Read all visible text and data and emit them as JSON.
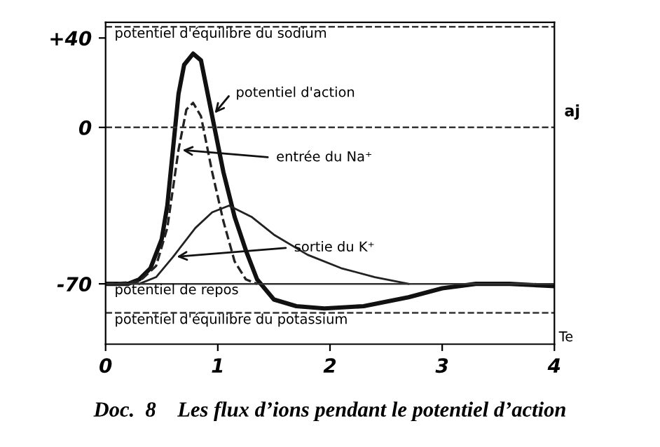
{
  "chart_data": {
    "type": "line",
    "title": "Doc.  8    Les flux d’ions pendant le potentiel d’action",
    "xlabel": "Te",
    "annotations": [
      "aj"
    ],
    "series": [
      {
        "name": "potentiel d'action",
        "color": "#111111",
        "line_style": "solid",
        "x": [
          0,
          0.2,
          0.3,
          0.4,
          0.5,
          0.55,
          0.6,
          0.65,
          0.7,
          0.78,
          0.85,
          0.95,
          1.05,
          1.15,
          1.25,
          1.35,
          1.5,
          1.7,
          1.95,
          2.3,
          2.7,
          3.0,
          3.3,
          3.6,
          4
        ],
        "values": [
          -70,
          -70,
          -68,
          -63,
          -50,
          -35,
          -10,
          15,
          28,
          33,
          30,
          5,
          -20,
          -40,
          -55,
          -68,
          -77,
          -80,
          -81,
          -80,
          -76,
          -72,
          -70,
          -70,
          -71
        ]
      },
      {
        "name": "entrée du Na⁺",
        "color": "#222222",
        "line_style": "dashed",
        "x": [
          0,
          0.3,
          0.45,
          0.55,
          0.65,
          0.72,
          0.78,
          0.85,
          0.95,
          1.05,
          1.15,
          1.25,
          1.35
        ],
        "values": [
          -70,
          -69,
          -62,
          -45,
          -10,
          8,
          11,
          5,
          -20,
          -42,
          -60,
          -68,
          -70
        ]
      },
      {
        "name": "sortie du K⁺",
        "color": "#222222",
        "line_style": "solid",
        "x": [
          0.3,
          0.45,
          0.6,
          0.8,
          0.95,
          1.1,
          1.3,
          1.5,
          1.8,
          2.1,
          2.4,
          2.7
        ],
        "values": [
          -70,
          -67,
          -58,
          -45,
          -38,
          -35,
          -40,
          -48,
          -57,
          -63,
          -67,
          -70
        ]
      }
    ],
    "xlim": [
      0,
      4
    ],
    "ylim": [
      -97,
      47
    ],
    "xticks": [
      0,
      1,
      2,
      3,
      4
    ],
    "yticks": [
      {
        "value": 40,
        "label": "+40"
      },
      0,
      -70
    ],
    "ref_lines": [
      {
        "axis": "y",
        "value": 45,
        "label": "potentiel d'équilibre du sodium",
        "line_style": "dashed",
        "color": "#333333"
      },
      {
        "axis": "y",
        "value": 0,
        "label": null,
        "line_style": "dashed",
        "color": "#333333"
      },
      {
        "axis": "y",
        "value": -70,
        "label": "potentiel de repos",
        "line_style": "solid",
        "color": "#333333"
      },
      {
        "axis": "y",
        "value": -83,
        "label": "potentiel d'équilibre du potassium",
        "line_style": "dashed",
        "color": "#333333"
      }
    ],
    "grid": false,
    "legend": false,
    "marker": "none"
  }
}
